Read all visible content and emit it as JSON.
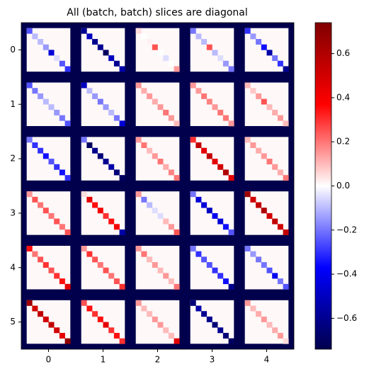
{
  "chart_data": {
    "type": "heatmap",
    "title": "All (batch, batch) slices are diagonal",
    "colormap": "seismic",
    "clim": [
      -0.74,
      0.74
    ],
    "padding": -0.74,
    "off_diagonal": 0.01,
    "xticks": [
      0,
      1,
      2,
      3,
      4
    ],
    "yticks": [
      0,
      1,
      2,
      3,
      4,
      5
    ],
    "colorbar_ticks": [
      {
        "value": -0.6,
        "label": "−0.6"
      },
      {
        "value": -0.4,
        "label": "−0.4"
      },
      {
        "value": -0.2,
        "label": "−0.2"
      },
      {
        "value": 0,
        "label": "0.0"
      },
      0.2,
      0.4,
      0.6
    ],
    "diagonals": [
      [
        [
          -0.25,
          -0.1,
          -0.1,
          -0.15,
          -0.45,
          -0.05,
          -0.25,
          -0.3
        ],
        [
          -0.6,
          -0.5,
          -0.6,
          -0.6,
          -0.7,
          -0.5,
          -0.6,
          -0.55
        ],
        [
          0.05,
          0.0,
          0.02,
          0.25,
          0.0,
          -0.05,
          0.0,
          0.15
        ],
        [
          -0.2,
          -0.1,
          -0.1,
          0.25,
          -0.1,
          -0.05,
          -0.15,
          -0.2
        ],
        [
          -0.3,
          -0.15,
          -0.2,
          -0.35,
          -0.55,
          -0.2,
          -0.3,
          -0.6
        ]
      ],
      [
        [
          -0.25,
          -0.2,
          -0.15,
          -0.1,
          -0.1,
          -0.15,
          -0.2,
          -0.25
        ],
        [
          -0.5,
          -0.1,
          -0.15,
          -0.2,
          -0.15,
          -0.1,
          -0.2,
          -0.45
        ],
        [
          0.15,
          0.12,
          0.15,
          0.12,
          0.15,
          0.2,
          0.15,
          0.1
        ],
        [
          0.15,
          0.15,
          0.2,
          0.18,
          0.15,
          0.2,
          0.2,
          0.15
        ],
        [
          0.1,
          0.08,
          0.15,
          0.25,
          0.1,
          0.12,
          0.15,
          0.1
        ]
      ],
      [
        [
          -0.2,
          -0.3,
          -0.3,
          -0.35,
          -0.25,
          -0.3,
          -0.35,
          -0.3
        ],
        [
          -0.2,
          -0.7,
          -0.6,
          -0.65,
          -0.6,
          -0.55,
          -0.65,
          -0.7
        ],
        [
          0.15,
          0.2,
          0.1,
          0.15,
          0.2,
          0.12,
          0.18,
          0.2
        ],
        [
          0.3,
          0.55,
          0.45,
          0.55,
          0.45,
          0.5,
          0.6,
          0.45
        ],
        [
          0.1,
          0.15,
          0.12,
          0.15,
          0.2,
          0.15,
          0.12,
          0.2
        ]
      ],
      [
        [
          0.15,
          0.25,
          0.2,
          0.25,
          0.2,
          0.25,
          0.2,
          0.25
        ],
        [
          0.05,
          0.45,
          0.35,
          0.4,
          0.3,
          0.35,
          0.4,
          -0.55
        ],
        [
          0.15,
          -0.2,
          -0.1,
          -0.05,
          -0.05,
          0.1,
          0.15,
          0.25
        ],
        [
          -0.2,
          -0.45,
          -0.45,
          -0.5,
          -0.4,
          -0.45,
          -0.35,
          -0.25
        ],
        [
          0.65,
          0.5,
          0.55,
          0.6,
          0.5,
          0.55,
          0.5,
          0.55
        ]
      ],
      [
        [
          0.35,
          0.2,
          0.25,
          0.3,
          0.25,
          0.3,
          0.35,
          0.45
        ],
        [
          0.15,
          0.3,
          0.25,
          0.2,
          0.25,
          0.2,
          0.25,
          0.3
        ],
        [
          0.15,
          0.2,
          0.1,
          0.15,
          0.1,
          0.15,
          0.1,
          0.2
        ],
        [
          -0.2,
          -0.3,
          -0.25,
          -0.25,
          -0.3,
          -0.3,
          -0.35,
          -0.6
        ],
        [
          -0.2,
          -0.15,
          -0.2,
          -0.2,
          -0.25,
          -0.4,
          -0.2,
          -0.25
        ]
      ],
      [
        [
          0.65,
          0.5,
          0.55,
          0.5,
          0.55,
          0.5,
          0.45,
          0.7
        ],
        [
          0.25,
          0.35,
          0.3,
          0.35,
          0.45,
          0.3,
          0.35,
          0.3
        ],
        [
          0.15,
          0.1,
          0.1,
          0.15,
          0.15,
          0.1,
          0.1,
          0.45
        ],
        [
          -0.65,
          -0.55,
          -0.6,
          -0.6,
          -0.65,
          -0.6,
          -0.65,
          -0.7
        ],
        [
          0.15,
          0.1,
          0.12,
          0.15,
          0.1,
          0.12,
          0.15,
          0.05
        ]
      ]
    ]
  }
}
